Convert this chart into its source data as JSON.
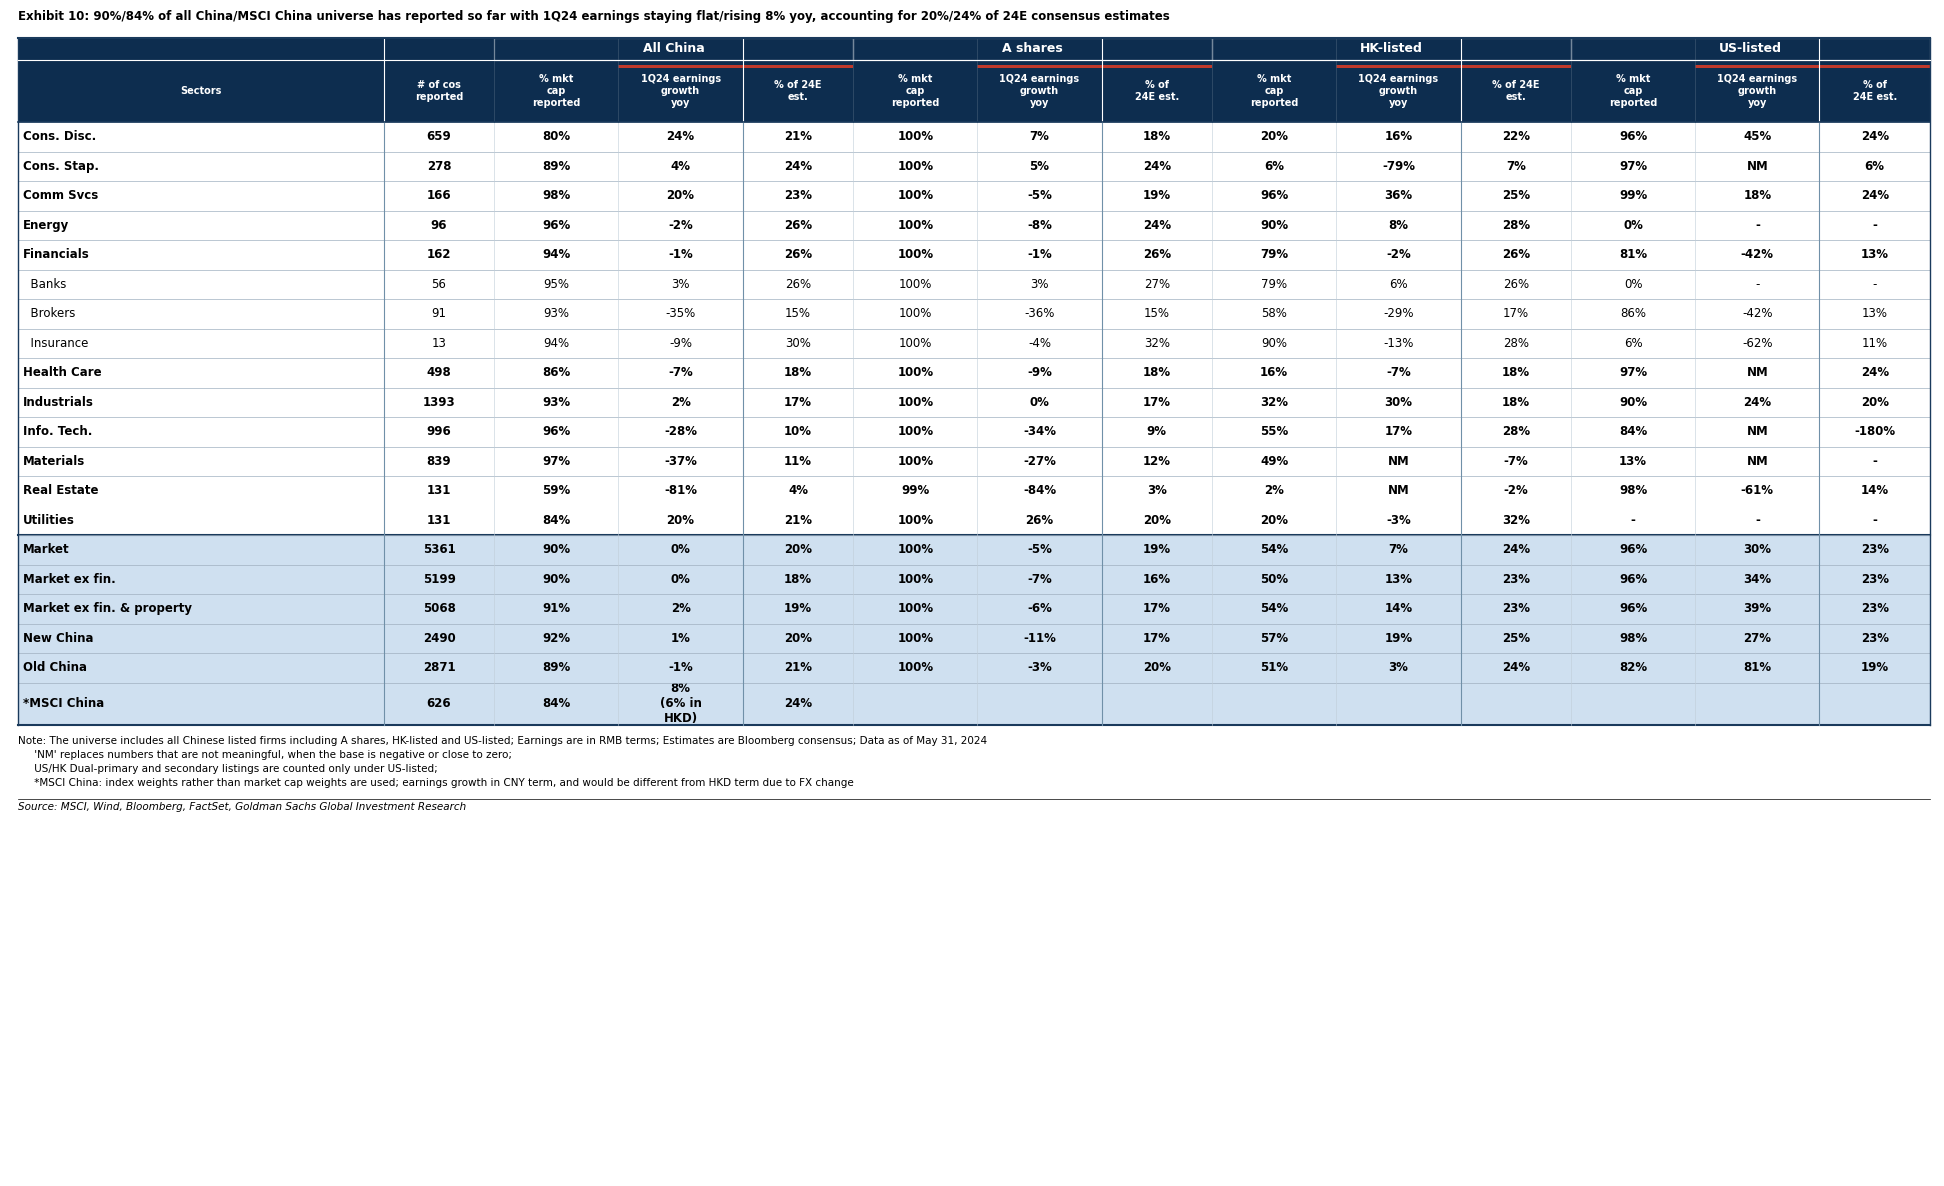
{
  "title": "Exhibit 10: 90%/84% of all China/MSCI China universe has reported so far with 1Q24 earnings staying flat/rising 8% yoy, accounting for 20%/24% of 24E consensus estimates",
  "source": "Source: MSCI, Wind, Bloomberg, FactSet, Goldman Sachs Global Investment Research",
  "notes": [
    "Note: The universe includes all Chinese listed firms including A shares, HK-listed and US-listed; Earnings are in RMB terms; Estimates are Bloomberg consensus; Data as of May 31, 2024",
    "     'NM' replaces numbers that are not meaningful, when the base is negative or close to zero;",
    "     US/HK Dual-primary and secondary listings are counted only under US-listed;",
    "     *MSCI China: index weights rather than market cap weights are used; earnings growth in CNY term, and would be different from HKD term due to FX change"
  ],
  "header_bg": "#0d2d4f",
  "light_blue_bg": "#cfe0f0",
  "rows": [
    {
      "sector": "Cons. Disc.",
      "indent": false,
      "bg": "white",
      "data": [
        "659",
        "80%",
        "24%",
        "21%",
        "100%",
        "7%",
        "18%",
        "20%",
        "16%",
        "22%",
        "96%",
        "45%",
        "24%"
      ]
    },
    {
      "sector": "Cons. Stap.",
      "indent": false,
      "bg": "white",
      "data": [
        "278",
        "89%",
        "4%",
        "24%",
        "100%",
        "5%",
        "24%",
        "6%",
        "-79%",
        "7%",
        "97%",
        "NM",
        "6%"
      ]
    },
    {
      "sector": "Comm Svcs",
      "indent": false,
      "bg": "white",
      "data": [
        "166",
        "98%",
        "20%",
        "23%",
        "100%",
        "-5%",
        "19%",
        "96%",
        "36%",
        "25%",
        "99%",
        "18%",
        "24%"
      ]
    },
    {
      "sector": "Energy",
      "indent": false,
      "bg": "white",
      "data": [
        "96",
        "96%",
        "-2%",
        "26%",
        "100%",
        "-8%",
        "24%",
        "90%",
        "8%",
        "28%",
        "0%",
        "-",
        "-"
      ]
    },
    {
      "sector": "Financials",
      "indent": false,
      "bg": "white",
      "data": [
        "162",
        "94%",
        "-1%",
        "26%",
        "100%",
        "-1%",
        "26%",
        "79%",
        "-2%",
        "26%",
        "81%",
        "-42%",
        "13%"
      ]
    },
    {
      "sector": "  Banks",
      "indent": true,
      "bg": "white",
      "data": [
        "56",
        "95%",
        "3%",
        "26%",
        "100%",
        "3%",
        "27%",
        "79%",
        "6%",
        "26%",
        "0%",
        "-",
        "-"
      ]
    },
    {
      "sector": "  Brokers",
      "indent": true,
      "bg": "white",
      "data": [
        "91",
        "93%",
        "-35%",
        "15%",
        "100%",
        "-36%",
        "15%",
        "58%",
        "-29%",
        "17%",
        "86%",
        "-42%",
        "13%"
      ]
    },
    {
      "sector": "  Insurance",
      "indent": true,
      "bg": "white",
      "data": [
        "13",
        "94%",
        "-9%",
        "30%",
        "100%",
        "-4%",
        "32%",
        "90%",
        "-13%",
        "28%",
        "6%",
        "-62%",
        "11%"
      ]
    },
    {
      "sector": "Health Care",
      "indent": false,
      "bg": "white",
      "data": [
        "498",
        "86%",
        "-7%",
        "18%",
        "100%",
        "-9%",
        "18%",
        "16%",
        "-7%",
        "18%",
        "97%",
        "NM",
        "24%"
      ]
    },
    {
      "sector": "Industrials",
      "indent": false,
      "bg": "white",
      "data": [
        "1393",
        "93%",
        "2%",
        "17%",
        "100%",
        "0%",
        "17%",
        "32%",
        "30%",
        "18%",
        "90%",
        "24%",
        "20%"
      ]
    },
    {
      "sector": "Info. Tech.",
      "indent": false,
      "bg": "white",
      "data": [
        "996",
        "96%",
        "-28%",
        "10%",
        "100%",
        "-34%",
        "9%",
        "55%",
        "17%",
        "28%",
        "84%",
        "NM",
        "-180%"
      ]
    },
    {
      "sector": "Materials",
      "indent": false,
      "bg": "white",
      "data": [
        "839",
        "97%",
        "-37%",
        "11%",
        "100%",
        "-27%",
        "12%",
        "49%",
        "NM",
        "-7%",
        "13%",
        "NM",
        "-"
      ]
    },
    {
      "sector": "Real Estate",
      "indent": false,
      "bg": "white",
      "data": [
        "131",
        "59%",
        "-81%",
        "4%",
        "99%",
        "-84%",
        "3%",
        "2%",
        "NM",
        "-2%",
        "98%",
        "-61%",
        "14%"
      ]
    },
    {
      "sector": "Utilities",
      "indent": false,
      "bg": "white",
      "data": [
        "131",
        "84%",
        "20%",
        "21%",
        "100%",
        "26%",
        "20%",
        "20%",
        "-3%",
        "32%",
        "-",
        "-",
        "-"
      ]
    },
    {
      "sector": "Market",
      "indent": false,
      "bg": "summary",
      "data": [
        "5361",
        "90%",
        "0%",
        "20%",
        "100%",
        "-5%",
        "19%",
        "54%",
        "7%",
        "24%",
        "96%",
        "30%",
        "23%"
      ]
    },
    {
      "sector": "Market ex fin.",
      "indent": false,
      "bg": "summary",
      "data": [
        "5199",
        "90%",
        "0%",
        "18%",
        "100%",
        "-7%",
        "16%",
        "50%",
        "13%",
        "23%",
        "96%",
        "34%",
        "23%"
      ]
    },
    {
      "sector": "Market ex fin. & property",
      "indent": false,
      "bg": "summary",
      "data": [
        "5068",
        "91%",
        "2%",
        "19%",
        "100%",
        "-6%",
        "17%",
        "54%",
        "14%",
        "23%",
        "96%",
        "39%",
        "23%"
      ]
    },
    {
      "sector": "New China",
      "indent": false,
      "bg": "summary",
      "data": [
        "2490",
        "92%",
        "1%",
        "20%",
        "100%",
        "-11%",
        "17%",
        "57%",
        "19%",
        "25%",
        "98%",
        "27%",
        "23%"
      ]
    },
    {
      "sector": "Old China",
      "indent": false,
      "bg": "summary",
      "data": [
        "2871",
        "89%",
        "-1%",
        "21%",
        "100%",
        "-3%",
        "20%",
        "51%",
        "3%",
        "24%",
        "82%",
        "81%",
        "19%"
      ]
    },
    {
      "sector": "*MSCI China",
      "indent": false,
      "bg": "summary",
      "data": [
        "626",
        "84%",
        "8%\n(6% in\nHKD)",
        "24%",
        "",
        "",
        "",
        "",
        "",
        "",
        "",
        "",
        ""
      ]
    }
  ]
}
